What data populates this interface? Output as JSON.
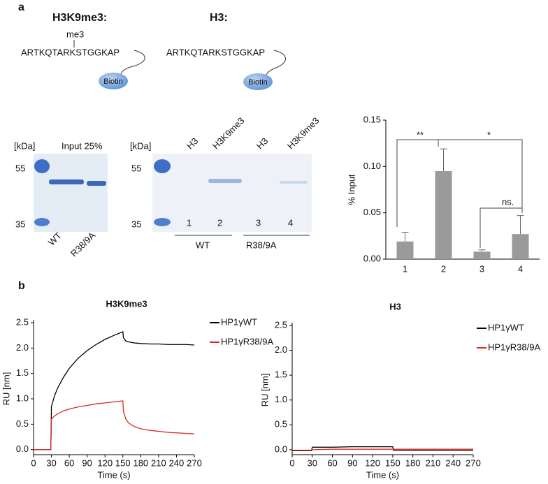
{
  "panel_labels": [
    "a",
    "b"
  ],
  "peptides": [
    {
      "title": "H3K9me3:",
      "mod": "me3",
      "sequence": "ARTKQTARKSTGGKAP",
      "tag": "Biotin"
    },
    {
      "title": "H3:",
      "sequence": "ARTKQTARKSTGGKAP",
      "tag": "Biotin"
    }
  ],
  "gels": [
    {
      "unit": "[kDa]",
      "title": "Input 25%",
      "markers": [
        "55",
        "35"
      ],
      "lanes": [
        "WT",
        "R38/9A"
      ]
    },
    {
      "unit": "[kDa]",
      "markers": [
        "55",
        "35"
      ],
      "lane_headers": [
        "H3",
        "H3K9me3",
        "H3",
        "H3K9me3"
      ],
      "lane_numbers": [
        "1",
        "2",
        "3",
        "4"
      ],
      "groups": [
        "WT",
        "R38/9A"
      ]
    }
  ],
  "chart_data": [
    {
      "type": "bar",
      "ylabel": "% Input",
      "categories": [
        "1",
        "2",
        "3",
        "4"
      ],
      "values": [
        0.019,
        0.095,
        0.008,
        0.027
      ],
      "errors": [
        0.01,
        0.024,
        0.002,
        0.02
      ],
      "color": "#9a9a9a",
      "ylim": [
        0,
        0.15
      ],
      "yticks": [
        {
          "value": 0,
          "label": "0.00"
        },
        0.05,
        {
          "value": 0.1,
          "label": "0.10"
        },
        0.15
      ],
      "annotations": [
        "**",
        "*",
        "ns."
      ]
    },
    {
      "type": "line",
      "title": "H3K9me3",
      "xlabel": "Time (s)",
      "ylabel": "RU [nm]",
      "x": [
        0,
        29,
        30,
        35,
        40,
        50,
        60,
        75,
        90,
        105,
        120,
        135,
        150,
        151,
        155,
        160,
        170,
        180,
        195,
        210,
        225,
        240,
        255,
        270
      ],
      "series": [
        {
          "name": "HP1γWT",
          "color": "#000000",
          "values": [
            0,
            0,
            0.85,
            1.05,
            1.2,
            1.42,
            1.6,
            1.8,
            1.95,
            2.07,
            2.17,
            2.25,
            2.32,
            2.2,
            2.14,
            2.12,
            2.1,
            2.09,
            2.08,
            2.08,
            2.07,
            2.07,
            2.07,
            2.06
          ]
        },
        {
          "name": "HP1γR38/9A",
          "color": "#d62a20",
          "values": [
            0,
            0,
            0.6,
            0.66,
            0.7,
            0.76,
            0.8,
            0.84,
            0.87,
            0.9,
            0.92,
            0.94,
            0.96,
            0.75,
            0.6,
            0.52,
            0.45,
            0.41,
            0.38,
            0.36,
            0.34,
            0.33,
            0.32,
            0.31
          ]
        }
      ],
      "xlim": [
        0,
        270
      ],
      "xticks": [
        0,
        30,
        60,
        90,
        120,
        150,
        180,
        210,
        240,
        270
      ],
      "ylim": [
        -0.1,
        2.5
      ],
      "yticks": [
        {
          "value": 0,
          "label": "0.0"
        },
        0.5,
        {
          "value": 1,
          "label": "1.0"
        },
        1.5,
        {
          "value": 2,
          "label": "2.0"
        },
        2.5
      ]
    },
    {
      "type": "line",
      "title": "H3",
      "xlabel": "Time (s)",
      "ylabel": "RU [nm]",
      "x": [
        0,
        29,
        30,
        60,
        90,
        120,
        150,
        151,
        180,
        210,
        240,
        270
      ],
      "series": [
        {
          "name": "HP1γWT",
          "color": "#000000",
          "values": [
            -0.01,
            -0.01,
            0.05,
            0.05,
            0.06,
            0.06,
            0.06,
            -0.01,
            -0.01,
            -0.01,
            -0.01,
            -0.01
          ]
        },
        {
          "name": "HP1γR38/9A",
          "color": "#d62a20",
          "values": [
            -0.02,
            -0.02,
            0.0,
            0.01,
            0.01,
            0.01,
            0.01,
            0.01,
            0.01,
            0.01,
            0.01,
            0.01
          ]
        }
      ],
      "xlim": [
        0,
        270
      ],
      "xticks": [
        0,
        30,
        60,
        90,
        120,
        150,
        180,
        210,
        240,
        270
      ],
      "ylim": [
        -0.1,
        2.5
      ],
      "yticks": [
        {
          "value": 0,
          "label": "0.0"
        },
        0.5,
        {
          "value": 1,
          "label": "1.0"
        },
        1.5,
        {
          "value": 2,
          "label": "2.0"
        },
        2.5
      ]
    }
  ]
}
